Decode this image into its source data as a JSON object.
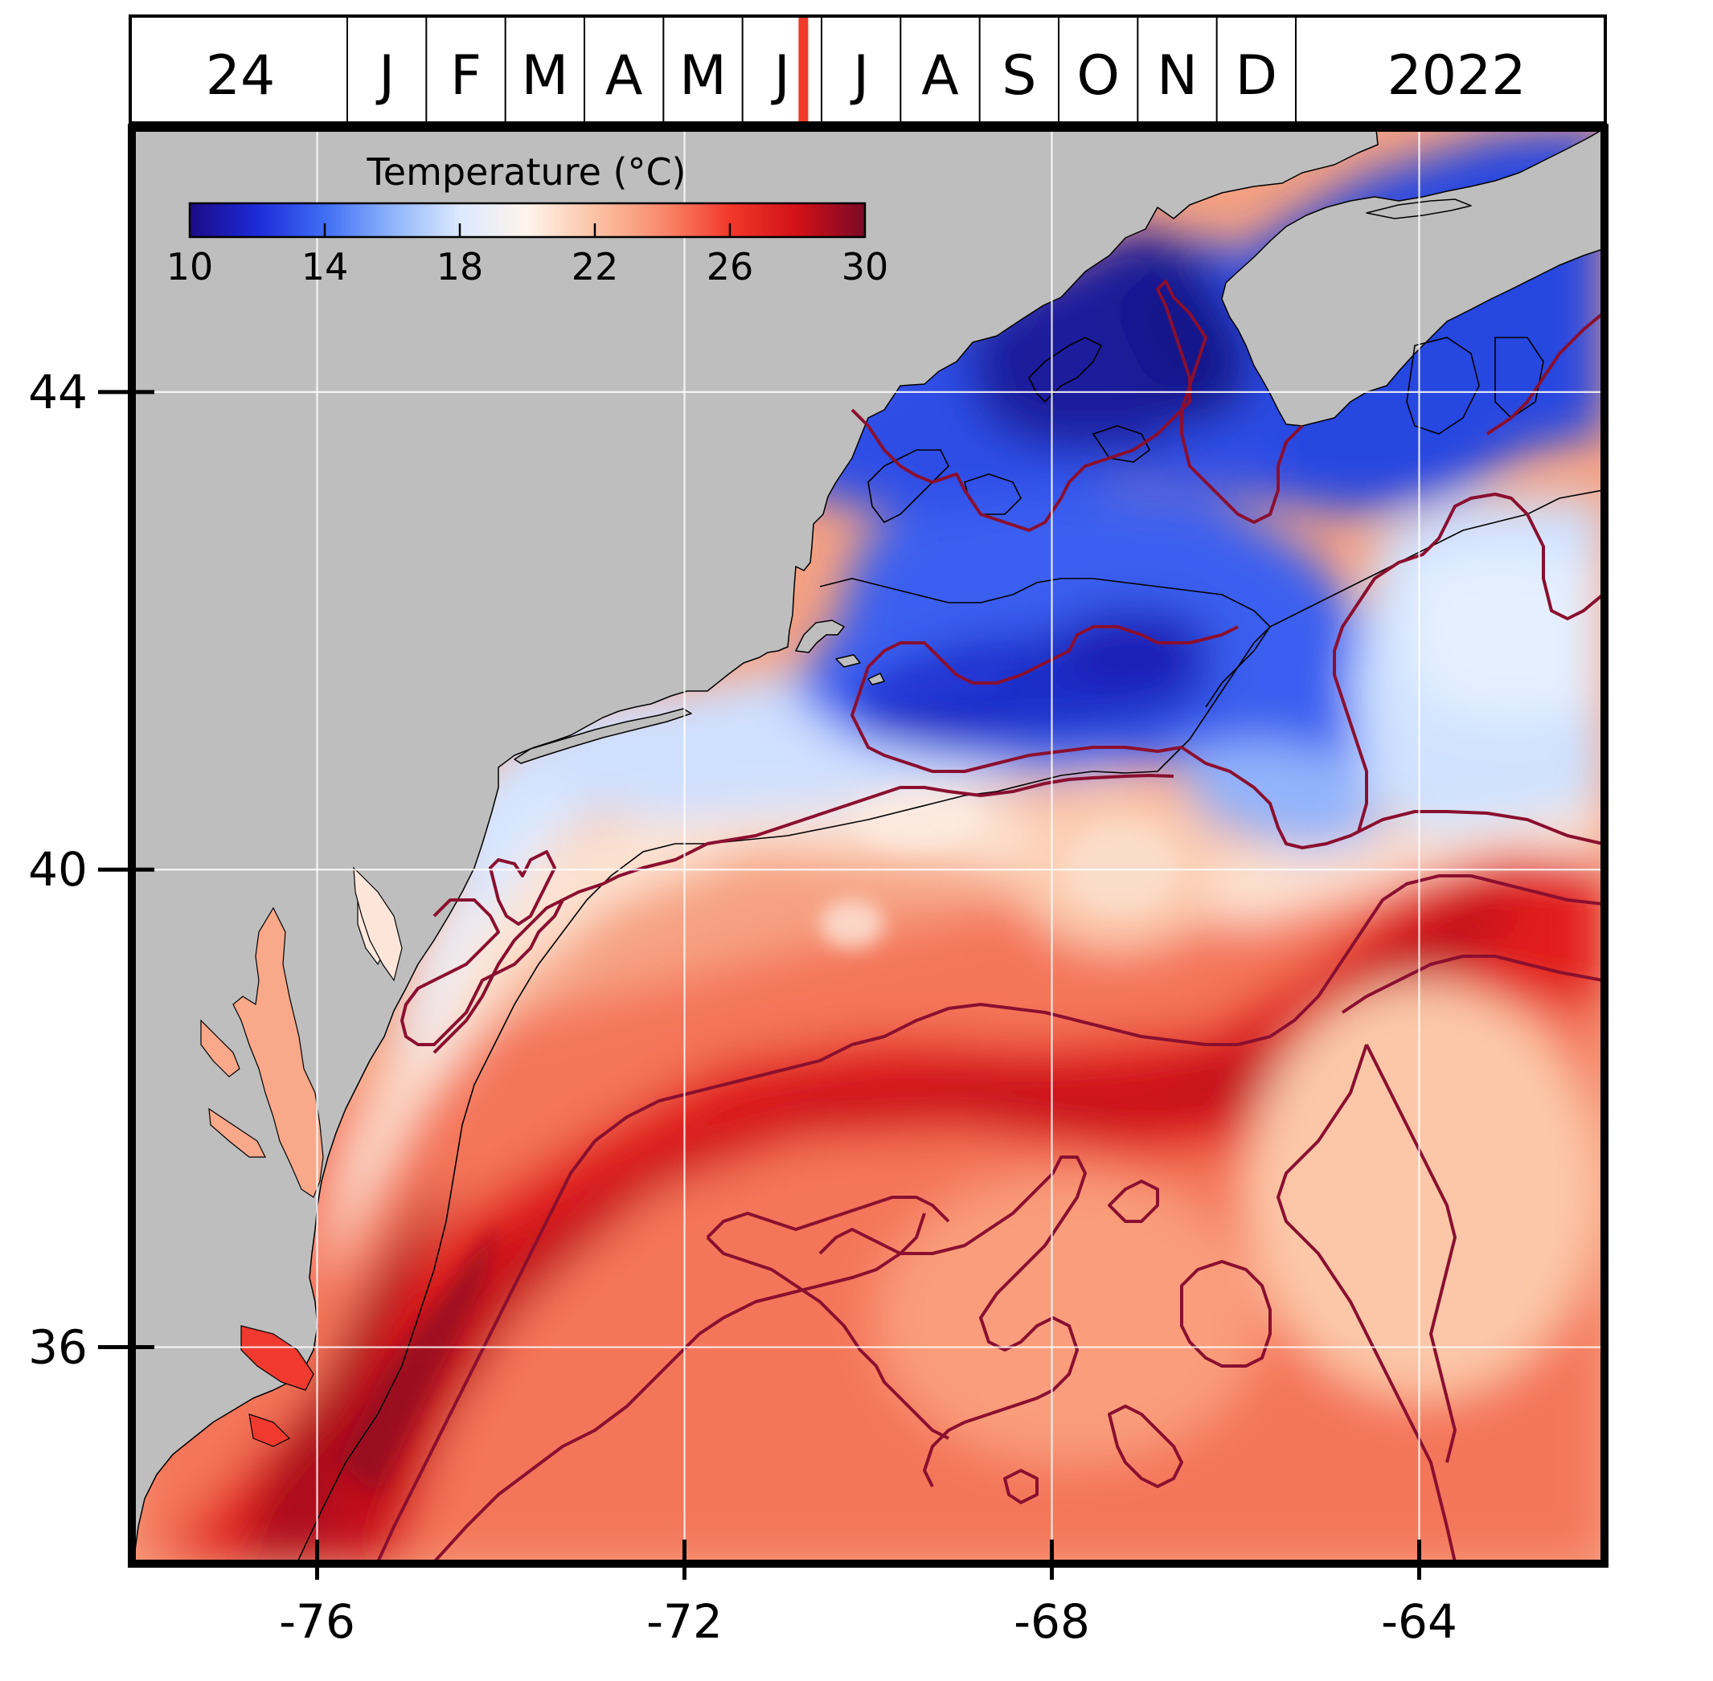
{
  "timeline": {
    "day": "24",
    "months": [
      "J",
      "F",
      "M",
      "A",
      "M",
      "J",
      "J",
      "A",
      "S",
      "O",
      "N",
      "D"
    ],
    "year": "2022",
    "marker_color": "#f03a2a",
    "marker_month_fraction": 5.77
  },
  "colorbar": {
    "title": "Temperature (°C)",
    "ticks": [
      "10",
      "14",
      "18",
      "22",
      "26",
      "30"
    ],
    "range": [
      10,
      30
    ],
    "stops": [
      "#1b0b86",
      "#1d2bd8",
      "#3f6ef5",
      "#8fb4fb",
      "#dce9ff",
      "#fff4ec",
      "#fcc3a6",
      "#f98a6c",
      "#f2382b",
      "#d21017",
      "#7a0a26"
    ]
  },
  "map": {
    "lon_ticks": [
      "-76",
      "-72",
      "-68",
      "-64"
    ],
    "lat_ticks": [
      "44",
      "40",
      "36"
    ],
    "lon_range": [
      -78,
      -62
    ],
    "lat_range": [
      34.2,
      46.2
    ],
    "land_color": "#bebebe",
    "contour_color": "#8a0f2f",
    "grid_color": "#ffffff"
  }
}
